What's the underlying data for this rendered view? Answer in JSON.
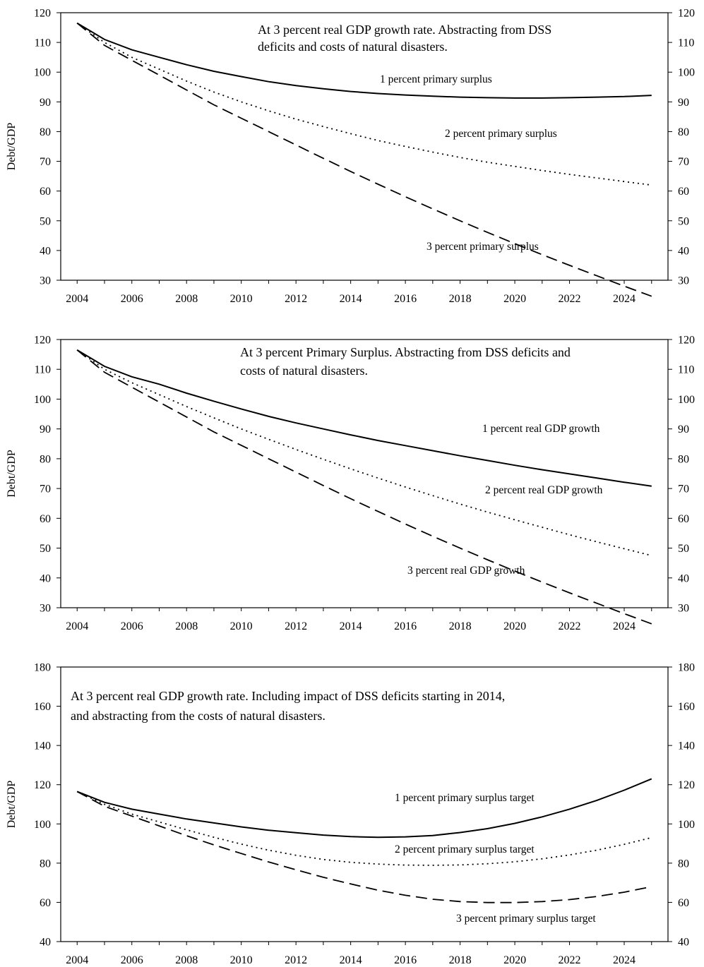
{
  "chart_data": [
    {
      "type": "line",
      "title": "",
      "note_lines": [
        "At 3 percent real GDP growth rate. Abstracting from DSS",
        "deficits and costs of natural disasters."
      ],
      "xlabel": "",
      "ylabel": "Debt/GDP",
      "x_tick_labels": [
        "2004",
        "2006",
        "2008",
        "2010",
        "2012",
        "2014",
        "2016",
        "2018",
        "2020",
        "2022",
        "2024"
      ],
      "y_tick_labels": [
        "30",
        "40",
        "50",
        "60",
        "70",
        "80",
        "90",
        "100",
        "110",
        "120"
      ],
      "xlim": [
        2003.4,
        2025.6
      ],
      "ylim": [
        30,
        120
      ],
      "grid": false,
      "x": [
        2004,
        2005,
        2006,
        2007,
        2008,
        2009,
        2010,
        2011,
        2012,
        2013,
        2014,
        2015,
        2016,
        2017,
        2018,
        2019,
        2020,
        2021,
        2022,
        2023,
        2024,
        2025
      ],
      "series": [
        {
          "label_text": "1 percent primary surplus",
          "style": "solid",
          "values": [
            116.5,
            111,
            107.5,
            105,
            102.5,
            100.3,
            98.5,
            96.8,
            95.5,
            94.4,
            93.5,
            92.8,
            92.3,
            91.9,
            91.6,
            91.4,
            91.3,
            91.3,
            91.4,
            91.6,
            91.8,
            92.2
          ]
        },
        {
          "label_text": "2 percent primary surplus",
          "style": "dotted",
          "values": [
            116.5,
            110,
            105,
            101,
            97,
            93.3,
            90,
            87,
            84.2,
            81.7,
            79.3,
            77,
            75,
            73.1,
            71.3,
            69.7,
            68.3,
            66.9,
            65.6,
            64.4,
            63.2,
            62
          ]
        },
        {
          "label_text": "3 percent primary surplus",
          "style": "dashed",
          "values": [
            116.5,
            109,
            104,
            99,
            94,
            89,
            84.5,
            80,
            75.5,
            71,
            66.6,
            62.3,
            58.1,
            54,
            50,
            46.1,
            42.3,
            38.6,
            35,
            31.5,
            28,
            24.6
          ]
        }
      ]
    },
    {
      "type": "line",
      "title": "",
      "note_lines": [
        "At 3 percent Primary Surplus. Abstracting from DSS deficits and",
        "costs of natural disasters."
      ],
      "xlabel": "",
      "ylabel": "Debt/GDP",
      "x_tick_labels": [
        "2004",
        "2006",
        "2008",
        "2010",
        "2012",
        "2014",
        "2016",
        "2018",
        "2020",
        "2022",
        "2024"
      ],
      "y_tick_labels": [
        "30",
        "40",
        "50",
        "60",
        "70",
        "80",
        "90",
        "100",
        "110",
        "120"
      ],
      "xlim": [
        2003.4,
        2025.6
      ],
      "ylim": [
        30,
        120
      ],
      "grid": false,
      "x": [
        2004,
        2005,
        2006,
        2007,
        2008,
        2009,
        2010,
        2011,
        2012,
        2013,
        2014,
        2015,
        2016,
        2017,
        2018,
        2019,
        2020,
        2021,
        2022,
        2023,
        2024,
        2025
      ],
      "series": [
        {
          "label_text": "1 percent real GDP growth",
          "style": "solid",
          "values": [
            116.5,
            111,
            107.5,
            105,
            102,
            99.3,
            96.7,
            94.2,
            92,
            90,
            88,
            86.1,
            84.4,
            82.7,
            81,
            79.4,
            77.8,
            76.3,
            74.9,
            73.5,
            72.1,
            70.8
          ]
        },
        {
          "label_text": "2 percent real GDP growth",
          "style": "dotted",
          "values": [
            116.5,
            110,
            105.5,
            101.5,
            97.5,
            93.7,
            90,
            86.5,
            83.1,
            79.8,
            76.6,
            73.5,
            70.5,
            67.6,
            64.8,
            62.1,
            59.5,
            57,
            54.5,
            52.1,
            49.8,
            47.5
          ]
        },
        {
          "label_text": "3 percent real GDP growth",
          "style": "dashed",
          "values": [
            116.5,
            109,
            104,
            99,
            94,
            89,
            84.5,
            80,
            75.5,
            71,
            66.6,
            62.3,
            58.1,
            54,
            50,
            46.1,
            42.3,
            38.6,
            35,
            31.5,
            28,
            24.6
          ]
        }
      ]
    },
    {
      "type": "line",
      "title": "",
      "note_lines": [
        "At 3 percent real GDP growth rate. Including impact of DSS deficits starting in 2014,",
        "and abstracting from the costs of natural disasters."
      ],
      "xlabel": "",
      "ylabel": "Debt/GDP",
      "x_tick_labels": [
        "2004",
        "2006",
        "2008",
        "2010",
        "2012",
        "2014",
        "2016",
        "2018",
        "2020",
        "2022",
        "2024"
      ],
      "y_tick_labels": [
        "40",
        "60",
        "80",
        "100",
        "120",
        "140",
        "160",
        "180"
      ],
      "xlim": [
        2003.4,
        2025.6
      ],
      "ylim": [
        40,
        180
      ],
      "grid": false,
      "x": [
        2004,
        2005,
        2006,
        2007,
        2008,
        2009,
        2010,
        2011,
        2012,
        2013,
        2014,
        2015,
        2016,
        2017,
        2018,
        2019,
        2020,
        2021,
        2022,
        2023,
        2024,
        2025
      ],
      "series": [
        {
          "label_text": "1 percent primary surplus target",
          "style": "solid",
          "values": [
            116.5,
            111,
            107.5,
            105,
            102.5,
            100.5,
            98.5,
            96.8,
            95.5,
            94.3,
            93.5,
            93.2,
            93.4,
            94.1,
            95.6,
            97.6,
            100.3,
            103.6,
            107.5,
            112,
            117.2,
            123
          ]
        },
        {
          "label_text": "2 percent primary surplus target",
          "style": "dotted",
          "values": [
            116.5,
            110,
            105,
            101,
            97,
            93.2,
            89.7,
            86.6,
            84,
            81.9,
            80.4,
            79.5,
            79,
            78.9,
            79.1,
            79.7,
            80.7,
            82.2,
            84.2,
            86.6,
            89.6,
            93
          ]
        },
        {
          "label_text": "3 percent primary surplus target",
          "style": "dashed",
          "values": [
            116.5,
            109,
            104,
            99,
            94,
            89.3,
            84.9,
            80.6,
            76.6,
            72.8,
            69.4,
            66.2,
            63.6,
            61.6,
            60.4,
            59.9,
            59.9,
            60.4,
            61.4,
            63,
            65.2,
            68
          ]
        }
      ]
    }
  ]
}
